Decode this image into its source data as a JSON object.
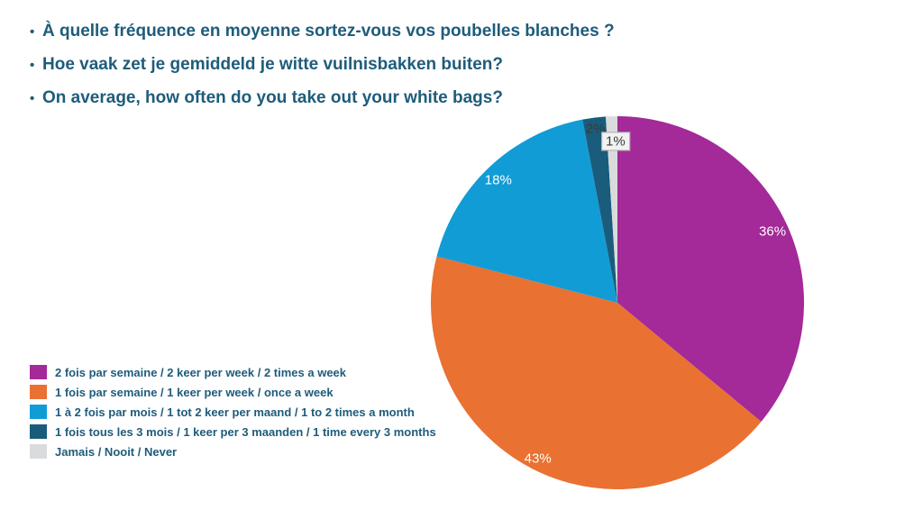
{
  "slide": {
    "background_color": "#FFFFFF",
    "text_color": "#1E5C7B",
    "title_bullets": [
      "À quelle fréquence en moyenne sortez-vous vos poubelles blanches ?",
      "Hoe vaak zet je gemiddeld je witte vuilnisbakken buiten?",
      "On average, how often do you take out your white bags?"
    ]
  },
  "chart_data": {
    "type": "pie",
    "title": "",
    "categories": [
      "2 fois par semaine  / 2 keer per week / 2 times a week",
      "1 fois par semaine  / 1 keer per week / once a week",
      "1 à 2 fois par mois / 1 tot 2 keer per maand / 1 to 2 times a month",
      "1 fois tous les 3 mois / 1 keer per 3 maanden / 1 time every 3 months",
      "Jamais / Nooit / Never"
    ],
    "values": [
      36,
      43,
      18,
      2,
      1
    ],
    "unit": "%",
    "colors": [
      "#A32A98",
      "#E97132",
      "#129CD6",
      "#1A5C7B",
      "#D9DBDC"
    ],
    "data_labels": [
      "36%",
      "43%",
      "18%",
      "2%",
      "1%"
    ],
    "label_colors": [
      "#FFFFFF",
      "#FFFFFF",
      "#FFFFFF",
      "#3A3A3A",
      "#3A3A3A"
    ],
    "label_backgrounds": [
      null,
      null,
      null,
      null,
      "#F2F2F2"
    ],
    "label_border_color": "#ABABAB",
    "start_angle_deg": 0,
    "direction": "clockwise",
    "legend_position": "bottom-left"
  }
}
